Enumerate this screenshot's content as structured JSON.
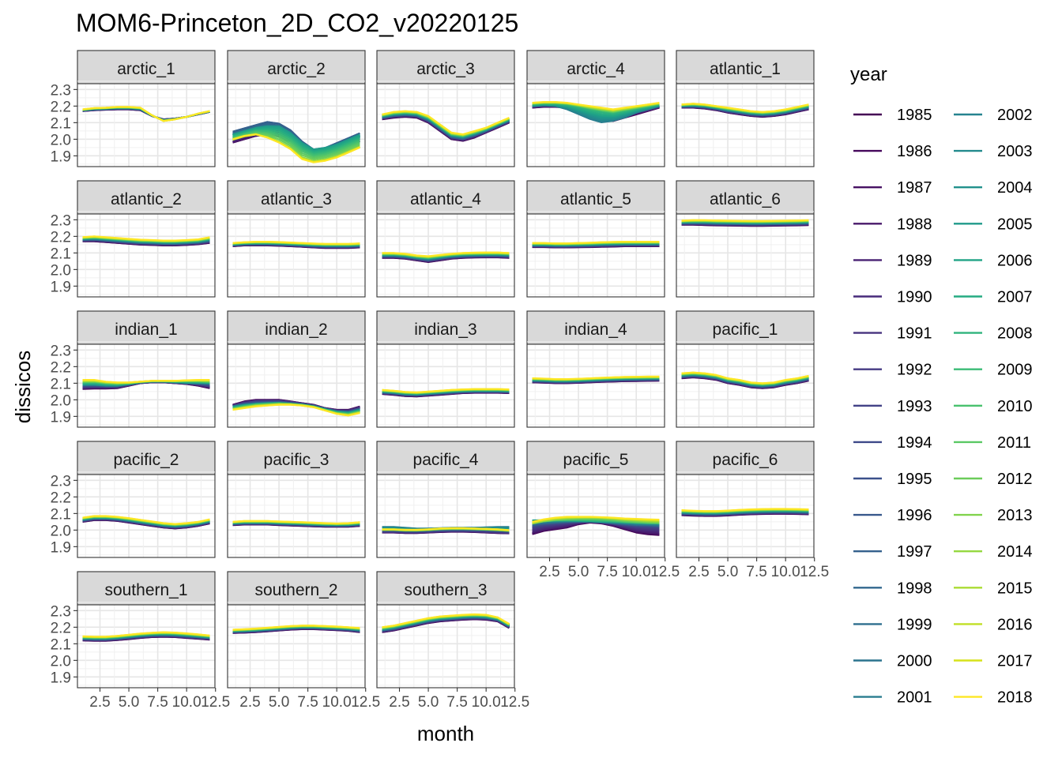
{
  "chart_data": {
    "type": "line",
    "title": "MOM6-Princeton_2D_CO2_v20220125",
    "xlabel": "month",
    "ylabel": "dissicos",
    "x": [
      1,
      2,
      3,
      4,
      5,
      6,
      7,
      8,
      9,
      10,
      11,
      12
    ],
    "xlim": [
      0.55,
      12.45
    ],
    "ylim": [
      1.835,
      2.335
    ],
    "x_ticks": [
      2.5,
      5.0,
      7.5,
      10.0,
      12.5
    ],
    "x_tick_labels": [
      "2.5",
      "5.0",
      "7.5",
      "10.0",
      "12.5"
    ],
    "y_ticks": [
      1.9,
      2.0,
      2.1,
      2.2,
      2.3
    ],
    "y_tick_labels": [
      "1.9",
      "2.0",
      "2.1",
      "2.2",
      "2.3"
    ],
    "grid": true,
    "legend": {
      "title": "year",
      "position": "right",
      "years": [
        "1985",
        "1986",
        "1987",
        "1988",
        "1989",
        "1990",
        "1991",
        "1992",
        "1993",
        "1994",
        "1995",
        "1996",
        "1997",
        "1998",
        "1999",
        "2000",
        "2001",
        "2002",
        "2003",
        "2004",
        "2005",
        "2006",
        "2007",
        "2008",
        "2009",
        "2010",
        "2011",
        "2012",
        "2013",
        "2014",
        "2015",
        "2016",
        "2017",
        "2018"
      ],
      "colors": [
        "#440154",
        "#46085c",
        "#471063",
        "#48186a",
        "#482173",
        "#472a7a",
        "#46327e",
        "#443a83",
        "#424186",
        "#3e4989",
        "#3b518b",
        "#38598c",
        "#34608d",
        "#31678e",
        "#2e6e8e",
        "#2b748e",
        "#287c8e",
        "#26838f",
        "#238a8d",
        "#21918c",
        "#1f998a",
        "#20a386",
        "#25ab82",
        "#2eb37c",
        "#3abb75",
        "#48c16e",
        "#5ac864",
        "#6ccd5a",
        "#81d34d",
        "#95d840",
        "#aadc32",
        "#c0df25",
        "#d6e21a",
        "#fde725"
      ]
    },
    "panels": [
      {
        "name": "arctic_1",
        "first": [
          2.17,
          2.175,
          2.178,
          2.18,
          2.18,
          2.175,
          2.14,
          2.12,
          2.125,
          2.135,
          2.15,
          2.165
        ],
        "last": [
          2.18,
          2.188,
          2.19,
          2.195,
          2.195,
          2.19,
          2.145,
          2.11,
          2.12,
          2.135,
          2.155,
          2.17
        ]
      },
      {
        "name": "arctic_2",
        "first": [
          1.98,
          2.0,
          2.02,
          2.03,
          2.02,
          1.99,
          1.95,
          1.92,
          1.93,
          1.95,
          1.97,
          1.99
        ],
        "last": [
          2.0,
          2.02,
          2.03,
          2.01,
          1.98,
          1.94,
          1.88,
          1.86,
          1.87,
          1.89,
          1.92,
          1.95
        ],
        "extras": [
          [
            2.05,
            2.07,
            2.09,
            2.11,
            2.1,
            2.06,
            1.99,
            1.94,
            1.95,
            1.98,
            2.01,
            2.04
          ],
          [
            2.03,
            2.05,
            2.07,
            2.08,
            2.08,
            2.04,
            1.98,
            1.94,
            1.95,
            1.97,
            2.0,
            2.03
          ]
        ]
      },
      {
        "name": "arctic_3",
        "first": [
          2.12,
          2.13,
          2.135,
          2.13,
          2.1,
          2.05,
          2.0,
          1.99,
          2.01,
          2.04,
          2.07,
          2.1
        ],
        "last": [
          2.15,
          2.165,
          2.17,
          2.165,
          2.14,
          2.09,
          2.04,
          2.03,
          2.05,
          2.07,
          2.1,
          2.13
        ]
      },
      {
        "name": "arctic_4",
        "first": [
          2.19,
          2.195,
          2.195,
          2.19,
          2.17,
          2.14,
          2.12,
          2.11,
          2.13,
          2.15,
          2.17,
          2.19
        ],
        "last": [
          2.22,
          2.225,
          2.225,
          2.22,
          2.21,
          2.2,
          2.19,
          2.18,
          2.19,
          2.2,
          2.21,
          2.22
        ],
        "extras": [
          [
            2.2,
            2.205,
            2.2,
            2.18,
            2.15,
            2.12,
            2.1,
            2.11,
            2.13,
            2.16,
            2.18,
            2.2
          ]
        ]
      },
      {
        "name": "atlantic_1",
        "first": [
          2.19,
          2.19,
          2.185,
          2.175,
          2.16,
          2.15,
          2.14,
          2.135,
          2.14,
          2.15,
          2.165,
          2.18
        ],
        "last": [
          2.21,
          2.215,
          2.21,
          2.2,
          2.19,
          2.18,
          2.17,
          2.165,
          2.17,
          2.18,
          2.195,
          2.21
        ]
      },
      {
        "name": "atlantic_2",
        "first": [
          2.17,
          2.17,
          2.165,
          2.16,
          2.155,
          2.15,
          2.148,
          2.145,
          2.145,
          2.148,
          2.152,
          2.16
        ],
        "last": [
          2.195,
          2.2,
          2.195,
          2.19,
          2.185,
          2.18,
          2.178,
          2.175,
          2.175,
          2.178,
          2.182,
          2.195
        ]
      },
      {
        "name": "atlantic_3",
        "first": [
          2.14,
          2.145,
          2.145,
          2.145,
          2.143,
          2.14,
          2.137,
          2.133,
          2.13,
          2.13,
          2.13,
          2.133
        ],
        "last": [
          2.16,
          2.165,
          2.168,
          2.168,
          2.166,
          2.163,
          2.16,
          2.157,
          2.155,
          2.155,
          2.155,
          2.158
        ]
      },
      {
        "name": "atlantic_4",
        "first": [
          2.07,
          2.07,
          2.065,
          2.055,
          2.045,
          2.055,
          2.065,
          2.07,
          2.072,
          2.073,
          2.073,
          2.07
        ],
        "last": [
          2.1,
          2.1,
          2.095,
          2.085,
          2.08,
          2.088,
          2.095,
          2.1,
          2.102,
          2.103,
          2.103,
          2.1
        ]
      },
      {
        "name": "atlantic_5",
        "first": [
          2.135,
          2.135,
          2.133,
          2.133,
          2.134,
          2.135,
          2.137,
          2.138,
          2.14,
          2.14,
          2.14,
          2.14
        ],
        "last": [
          2.16,
          2.16,
          2.158,
          2.158,
          2.16,
          2.162,
          2.165,
          2.167,
          2.168,
          2.168,
          2.168,
          2.168
        ]
      },
      {
        "name": "atlantic_6",
        "first": [
          2.27,
          2.27,
          2.268,
          2.266,
          2.265,
          2.264,
          2.263,
          2.263,
          2.264,
          2.265,
          2.266,
          2.268
        ],
        "last": [
          2.295,
          2.298,
          2.298,
          2.296,
          2.295,
          2.294,
          2.293,
          2.293,
          2.294,
          2.295,
          2.296,
          2.298
        ]
      },
      {
        "name": "indian_1",
        "first": [
          2.065,
          2.068,
          2.068,
          2.07,
          2.085,
          2.1,
          2.105,
          2.105,
          2.1,
          2.095,
          2.085,
          2.07
        ],
        "last": [
          2.12,
          2.12,
          2.11,
          2.105,
          2.105,
          2.11,
          2.115,
          2.115,
          2.115,
          2.118,
          2.12,
          2.12
        ],
        "extras": [
          [
            2.09,
            2.09,
            2.085,
            2.085,
            2.095,
            2.105,
            2.11,
            2.11,
            2.105,
            2.1,
            2.1,
            2.1
          ]
        ]
      },
      {
        "name": "indian_2",
        "first": [
          1.97,
          1.99,
          2.0,
          2.0,
          2.0,
          1.99,
          1.98,
          1.97,
          1.95,
          1.94,
          1.94,
          1.96
        ],
        "last": [
          1.94,
          1.95,
          1.96,
          1.965,
          1.97,
          1.97,
          1.965,
          1.955,
          1.935,
          1.915,
          1.905,
          1.92
        ],
        "extras": [
          [
            1.96,
            1.97,
            1.975,
            1.98,
            1.98,
            1.975,
            1.97,
            1.96,
            1.945,
            1.93,
            1.925,
            1.94
          ]
        ]
      },
      {
        "name": "indian_3",
        "first": [
          2.035,
          2.03,
          2.022,
          2.02,
          2.025,
          2.03,
          2.035,
          2.04,
          2.042,
          2.042,
          2.042,
          2.04
        ],
        "last": [
          2.06,
          2.055,
          2.048,
          2.045,
          2.05,
          2.055,
          2.06,
          2.063,
          2.065,
          2.065,
          2.065,
          2.063
        ]
      },
      {
        "name": "indian_4",
        "first": [
          2.105,
          2.103,
          2.1,
          2.1,
          2.102,
          2.105,
          2.108,
          2.11,
          2.112,
          2.113,
          2.114,
          2.115
        ],
        "last": [
          2.13,
          2.128,
          2.125,
          2.125,
          2.127,
          2.13,
          2.133,
          2.136,
          2.138,
          2.139,
          2.14,
          2.14
        ]
      },
      {
        "name": "pacific_1",
        "first": [
          2.13,
          2.135,
          2.13,
          2.12,
          2.1,
          2.09,
          2.075,
          2.07,
          2.075,
          2.09,
          2.1,
          2.115
        ],
        "last": [
          2.16,
          2.165,
          2.16,
          2.15,
          2.13,
          2.12,
          2.105,
          2.1,
          2.105,
          2.12,
          2.13,
          2.145
        ]
      },
      {
        "name": "pacific_2",
        "first": [
          2.05,
          2.06,
          2.06,
          2.055,
          2.045,
          2.035,
          2.025,
          2.015,
          2.01,
          2.015,
          2.025,
          2.04
        ],
        "last": [
          2.075,
          2.085,
          2.085,
          2.08,
          2.072,
          2.062,
          2.052,
          2.042,
          2.037,
          2.042,
          2.05,
          2.065
        ]
      },
      {
        "name": "pacific_3",
        "first": [
          2.03,
          2.033,
          2.033,
          2.033,
          2.03,
          2.027,
          2.025,
          2.022,
          2.02,
          2.02,
          2.02,
          2.025
        ],
        "last": [
          2.05,
          2.055,
          2.055,
          2.055,
          2.052,
          2.05,
          2.048,
          2.045,
          2.042,
          2.04,
          2.042,
          2.048
        ]
      },
      {
        "name": "pacific_4",
        "first": [
          1.985,
          1.985,
          1.982,
          1.982,
          1.985,
          1.988,
          1.99,
          1.99,
          1.988,
          1.985,
          1.982,
          1.98
        ],
        "last": [
          2.005,
          2.005,
          2.002,
          2.002,
          2.005,
          2.01,
          2.012,
          2.012,
          2.01,
          2.008,
          2.005,
          2.0
        ],
        "extras": [
          [
            2.02,
            2.02,
            2.015,
            2.01,
            2.01,
            2.012,
            2.015,
            2.015,
            2.015,
            2.018,
            2.02,
            2.02
          ]
        ]
      },
      {
        "name": "pacific_5",
        "first": [
          1.975,
          1.995,
          2.005,
          2.015,
          2.035,
          2.045,
          2.04,
          2.025,
          2.005,
          1.985,
          1.975,
          1.97
        ],
        "last": [
          2.05,
          2.065,
          2.075,
          2.08,
          2.08,
          2.08,
          2.078,
          2.075,
          2.07,
          2.068,
          2.065,
          2.063
        ],
        "extras": [
          [
            2.03,
            2.04,
            2.045,
            2.05,
            2.05,
            2.05,
            2.045,
            2.04,
            2.035,
            2.03,
            2.03,
            2.025
          ],
          [
            2.06,
            2.06,
            2.06,
            2.058,
            2.055,
            2.052,
            2.05,
            2.048,
            2.046,
            2.045,
            2.044,
            2.043
          ]
        ]
      },
      {
        "name": "pacific_6",
        "first": [
          2.09,
          2.087,
          2.085,
          2.085,
          2.088,
          2.092,
          2.095,
          2.097,
          2.098,
          2.098,
          2.097,
          2.095
        ],
        "last": [
          2.12,
          2.117,
          2.115,
          2.115,
          2.118,
          2.122,
          2.125,
          2.127,
          2.128,
          2.128,
          2.127,
          2.125
        ]
      },
      {
        "name": "southern_1",
        "first": [
          2.12,
          2.118,
          2.118,
          2.122,
          2.128,
          2.135,
          2.14,
          2.142,
          2.14,
          2.135,
          2.13,
          2.125
        ],
        "last": [
          2.145,
          2.143,
          2.143,
          2.148,
          2.155,
          2.162,
          2.167,
          2.17,
          2.168,
          2.163,
          2.157,
          2.15
        ]
      },
      {
        "name": "southern_2",
        "first": [
          2.165,
          2.167,
          2.17,
          2.175,
          2.18,
          2.185,
          2.188,
          2.188,
          2.185,
          2.182,
          2.178,
          2.17
        ],
        "last": [
          2.185,
          2.188,
          2.192,
          2.197,
          2.202,
          2.207,
          2.21,
          2.21,
          2.207,
          2.204,
          2.2,
          2.195
        ]
      },
      {
        "name": "southern_3",
        "first": [
          2.17,
          2.18,
          2.195,
          2.21,
          2.225,
          2.235,
          2.24,
          2.245,
          2.248,
          2.245,
          2.235,
          2.195
        ],
        "last": [
          2.2,
          2.21,
          2.225,
          2.24,
          2.255,
          2.265,
          2.27,
          2.275,
          2.278,
          2.275,
          2.26,
          2.22
        ]
      }
    ]
  }
}
